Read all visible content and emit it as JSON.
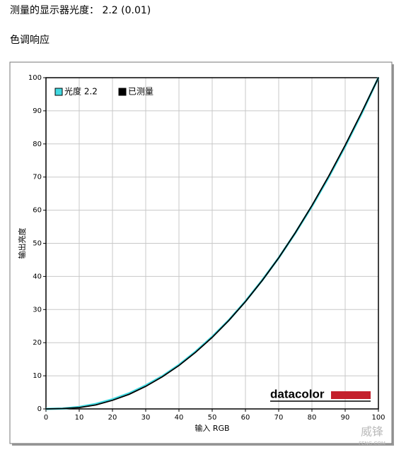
{
  "heading": "测量的显示器光度： 2.2 (0.01)",
  "section": "色调响应",
  "logo": "datacolor",
  "watermark": "威锋",
  "watermark_sub": "FENG.COM",
  "chart_data": {
    "type": "line",
    "x_label": "输入 RGB",
    "y_label": "输出亮度",
    "x": [
      0,
      5,
      10,
      15,
      20,
      25,
      30,
      35,
      40,
      45,
      50,
      55,
      60,
      65,
      70,
      75,
      80,
      85,
      90,
      95,
      100
    ],
    "series": [
      {
        "name": "光度 2.2",
        "color": "#40d8e0",
        "values": [
          0,
          0.1,
          0.6,
          1.5,
          2.9,
          4.7,
          7.1,
          9.9,
          13.3,
          17.3,
          21.8,
          26.8,
          32.5,
          38.8,
          45.6,
          53.1,
          61.2,
          69.9,
          79.3,
          89.3,
          100
        ]
      },
      {
        "name": "已测量",
        "color": "#000000",
        "values": [
          0,
          0.1,
          0.4,
          1.2,
          2.6,
          4.4,
          6.8,
          9.7,
          13.1,
          17.1,
          21.6,
          26.7,
          32.4,
          38.7,
          45.6,
          53.2,
          61.4,
          70.2,
          79.6,
          89.6,
          100
        ]
      }
    ],
    "xlim": [
      0,
      100
    ],
    "ylim": [
      0,
      100
    ],
    "xticks": [
      0,
      10,
      20,
      30,
      40,
      50,
      60,
      70,
      80,
      90,
      100
    ],
    "yticks": [
      0,
      10,
      20,
      30,
      40,
      50,
      60,
      70,
      80,
      90,
      100
    ],
    "grid": true,
    "legend": "top-left"
  }
}
